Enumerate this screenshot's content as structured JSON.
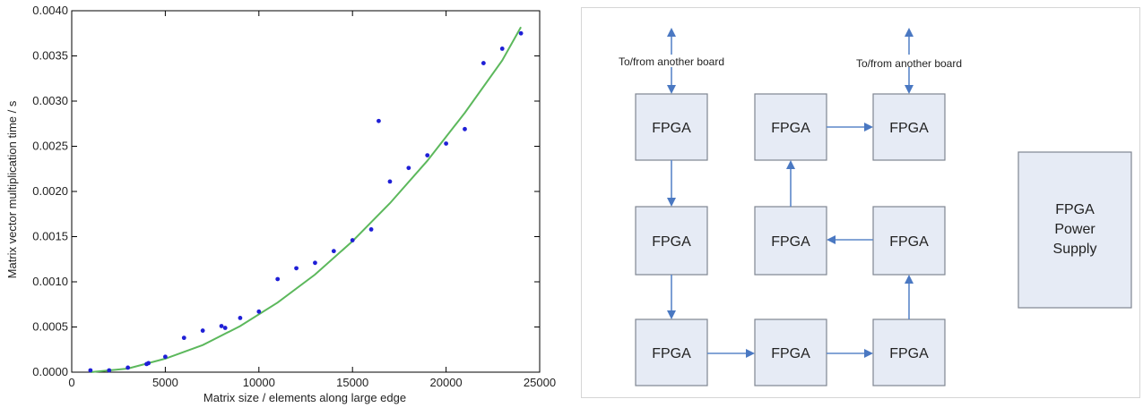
{
  "chart_data": {
    "type": "scatter",
    "title": "",
    "xlabel": "Matrix size / elements along large edge",
    "ylabel": "Matrix vector multiplication time / s",
    "xlim": [
      0,
      25000
    ],
    "ylim": [
      0,
      0.004
    ],
    "x_ticks": [
      "0",
      "5000",
      "10000",
      "15000",
      "20000",
      "25000"
    ],
    "y_ticks": [
      "0.0000",
      "0.0005",
      "0.0010",
      "0.0015",
      "0.0020",
      "0.0025",
      "0.0030",
      "0.0035",
      "0.0040"
    ],
    "grid": false,
    "legend": "none",
    "colors": {
      "points": "#1f1fd6",
      "fit": "#5cb85c"
    },
    "series": [
      {
        "kind": "points",
        "x": [
          1000,
          2000,
          3000,
          4000,
          4100,
          5000,
          6000,
          7000,
          8000,
          8200,
          9000,
          10000,
          11000,
          12000,
          13000,
          14000,
          15000,
          16000,
          16400,
          17000,
          18000,
          19000,
          20000,
          21000,
          22000,
          23000,
          24000
        ],
        "y": [
          2e-05,
          2e-05,
          5e-05,
          9e-05,
          0.0001,
          0.00017,
          0.00038,
          0.00046,
          0.00051,
          0.00049,
          0.0006,
          0.00067,
          0.00103,
          0.00115,
          0.00121,
          0.00134,
          0.00146,
          0.00158,
          0.00278,
          0.00211,
          0.00226,
          0.0024,
          0.00253,
          0.00269,
          0.00342,
          0.00358,
          0.00375
        ]
      },
      {
        "kind": "fit-curve",
        "x": [
          1000,
          3000,
          5000,
          7000,
          9000,
          11000,
          13000,
          15000,
          17000,
          19000,
          21000,
          23000,
          24000
        ],
        "y": [
          0.0,
          4e-05,
          0.00015,
          0.0003,
          0.00051,
          0.00077,
          0.00108,
          0.00145,
          0.00187,
          0.00234,
          0.00287,
          0.00345,
          0.00382
        ]
      }
    ]
  },
  "diagram": {
    "fpga_label": "FPGA",
    "external_label_left": "To/from another board",
    "external_label_right": "To/from another board",
    "power_supply_lines": [
      "FPGA",
      "Power",
      "Supply"
    ],
    "colors": {
      "box_fill": "#e6ebf5",
      "arrow": "#5b87c9"
    }
  }
}
